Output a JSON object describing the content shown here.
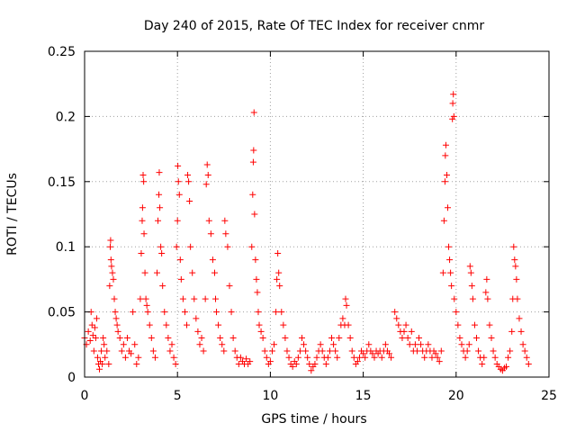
{
  "chart_data": {
    "type": "scatter",
    "title": "Day 240 of 2015, Rate Of TEC Index for receiver cnmr",
    "xlabel": "GPS time / hours",
    "ylabel": "ROTI / TECUs",
    "xlim": [
      0,
      25
    ],
    "ylim": [
      0,
      0.25
    ],
    "xticks": [
      0,
      5,
      10,
      15,
      20,
      25
    ],
    "xtick_labels": [
      "0",
      "5",
      "10",
      "15",
      "20",
      "25"
    ],
    "yticks": [
      0,
      0.05,
      0.1,
      0.15,
      0.2,
      0.25
    ],
    "ytick_labels": [
      "0",
      "0.05",
      "0.1",
      "0.15",
      "0.2",
      "0.25"
    ],
    "grid": true,
    "marker": "+",
    "color": "#ff0000",
    "series": [
      {
        "name": "ROTI",
        "points": [
          [
            0.0,
            0.03
          ],
          [
            0.1,
            0.025
          ],
          [
            0.2,
            0.035
          ],
          [
            0.3,
            0.028
          ],
          [
            0.35,
            0.05
          ],
          [
            0.4,
            0.04
          ],
          [
            0.45,
            0.032
          ],
          [
            0.5,
            0.02
          ],
          [
            0.55,
            0.038
          ],
          [
            0.6,
            0.03
          ],
          [
            0.65,
            0.045
          ],
          [
            0.7,
            0.015
          ],
          [
            0.75,
            0.01
          ],
          [
            0.8,
            0.006
          ],
          [
            0.85,
            0.012
          ],
          [
            0.9,
            0.02
          ],
          [
            0.95,
            0.01
          ],
          [
            1.0,
            0.03
          ],
          [
            1.05,
            0.025
          ],
          [
            1.1,
            0.015
          ],
          [
            1.2,
            0.02
          ],
          [
            1.3,
            0.01
          ],
          [
            1.35,
            0.07
          ],
          [
            1.38,
            0.1
          ],
          [
            1.4,
            0.105
          ],
          [
            1.42,
            0.09
          ],
          [
            1.45,
            0.085
          ],
          [
            1.5,
            0.08
          ],
          [
            1.55,
            0.075
          ],
          [
            1.6,
            0.06
          ],
          [
            1.65,
            0.05
          ],
          [
            1.7,
            0.045
          ],
          [
            1.75,
            0.04
          ],
          [
            1.8,
            0.035
          ],
          [
            1.9,
            0.03
          ],
          [
            2.0,
            0.02
          ],
          [
            2.1,
            0.025
          ],
          [
            2.2,
            0.015
          ],
          [
            2.3,
            0.03
          ],
          [
            2.4,
            0.02
          ],
          [
            2.5,
            0.018
          ],
          [
            2.6,
            0.05
          ],
          [
            2.7,
            0.025
          ],
          [
            2.8,
            0.01
          ],
          [
            2.9,
            0.015
          ],
          [
            3.0,
            0.06
          ],
          [
            3.05,
            0.095
          ],
          [
            3.1,
            0.12
          ],
          [
            3.12,
            0.13
          ],
          [
            3.15,
            0.155
          ],
          [
            3.18,
            0.15
          ],
          [
            3.2,
            0.11
          ],
          [
            3.25,
            0.08
          ],
          [
            3.3,
            0.06
          ],
          [
            3.35,
            0.055
          ],
          [
            3.4,
            0.05
          ],
          [
            3.5,
            0.04
          ],
          [
            3.6,
            0.03
          ],
          [
            3.7,
            0.02
          ],
          [
            3.8,
            0.015
          ],
          [
            3.9,
            0.08
          ],
          [
            3.95,
            0.12
          ],
          [
            4.0,
            0.14
          ],
          [
            4.02,
            0.157
          ],
          [
            4.05,
            0.13
          ],
          [
            4.1,
            0.1
          ],
          [
            4.15,
            0.095
          ],
          [
            4.2,
            0.07
          ],
          [
            4.3,
            0.05
          ],
          [
            4.4,
            0.04
          ],
          [
            4.5,
            0.03
          ],
          [
            4.6,
            0.02
          ],
          [
            4.7,
            0.025
          ],
          [
            4.8,
            0.015
          ],
          [
            4.9,
            0.01
          ],
          [
            4.95,
            0.1
          ],
          [
            5.0,
            0.12
          ],
          [
            5.02,
            0.162
          ],
          [
            5.05,
            0.15
          ],
          [
            5.1,
            0.14
          ],
          [
            5.15,
            0.09
          ],
          [
            5.2,
            0.075
          ],
          [
            5.3,
            0.06
          ],
          [
            5.4,
            0.05
          ],
          [
            5.5,
            0.04
          ],
          [
            5.55,
            0.155
          ],
          [
            5.6,
            0.15
          ],
          [
            5.65,
            0.135
          ],
          [
            5.7,
            0.1
          ],
          [
            5.8,
            0.08
          ],
          [
            5.9,
            0.06
          ],
          [
            6.0,
            0.045
          ],
          [
            6.1,
            0.035
          ],
          [
            6.2,
            0.025
          ],
          [
            6.3,
            0.03
          ],
          [
            6.4,
            0.02
          ],
          [
            6.5,
            0.06
          ],
          [
            6.55,
            0.148
          ],
          [
            6.6,
            0.163
          ],
          [
            6.65,
            0.155
          ],
          [
            6.7,
            0.12
          ],
          [
            6.8,
            0.11
          ],
          [
            6.9,
            0.09
          ],
          [
            7.0,
            0.08
          ],
          [
            7.05,
            0.06
          ],
          [
            7.1,
            0.05
          ],
          [
            7.2,
            0.04
          ],
          [
            7.3,
            0.03
          ],
          [
            7.4,
            0.025
          ],
          [
            7.5,
            0.02
          ],
          [
            7.55,
            0.12
          ],
          [
            7.6,
            0.11
          ],
          [
            7.7,
            0.1
          ],
          [
            7.8,
            0.07
          ],
          [
            7.9,
            0.05
          ],
          [
            8.0,
            0.03
          ],
          [
            8.1,
            0.02
          ],
          [
            8.2,
            0.015
          ],
          [
            8.3,
            0.01
          ],
          [
            8.4,
            0.015
          ],
          [
            8.5,
            0.012
          ],
          [
            8.6,
            0.01
          ],
          [
            8.7,
            0.014
          ],
          [
            8.8,
            0.01
          ],
          [
            8.9,
            0.012
          ],
          [
            9.0,
            0.1
          ],
          [
            9.05,
            0.14
          ],
          [
            9.08,
            0.165
          ],
          [
            9.1,
            0.174
          ],
          [
            9.12,
            0.203
          ],
          [
            9.15,
            0.125
          ],
          [
            9.2,
            0.09
          ],
          [
            9.25,
            0.075
          ],
          [
            9.3,
            0.065
          ],
          [
            9.35,
            0.05
          ],
          [
            9.4,
            0.04
          ],
          [
            9.5,
            0.035
          ],
          [
            9.6,
            0.03
          ],
          [
            9.7,
            0.02
          ],
          [
            9.8,
            0.015
          ],
          [
            9.9,
            0.01
          ],
          [
            10.0,
            0.012
          ],
          [
            10.1,
            0.02
          ],
          [
            10.2,
            0.025
          ],
          [
            10.3,
            0.05
          ],
          [
            10.35,
            0.075
          ],
          [
            10.4,
            0.095
          ],
          [
            10.45,
            0.08
          ],
          [
            10.5,
            0.07
          ],
          [
            10.6,
            0.05
          ],
          [
            10.7,
            0.04
          ],
          [
            10.8,
            0.03
          ],
          [
            10.9,
            0.02
          ],
          [
            11.0,
            0.015
          ],
          [
            11.1,
            0.01
          ],
          [
            11.2,
            0.008
          ],
          [
            11.3,
            0.012
          ],
          [
            11.4,
            0.01
          ],
          [
            11.5,
            0.015
          ],
          [
            11.6,
            0.02
          ],
          [
            11.7,
            0.03
          ],
          [
            11.8,
            0.025
          ],
          [
            11.9,
            0.02
          ],
          [
            12.0,
            0.015
          ],
          [
            12.1,
            0.01
          ],
          [
            12.2,
            0.005
          ],
          [
            12.3,
            0.008
          ],
          [
            12.4,
            0.01
          ],
          [
            12.5,
            0.015
          ],
          [
            12.6,
            0.02
          ],
          [
            12.7,
            0.025
          ],
          [
            12.8,
            0.02
          ],
          [
            12.9,
            0.015
          ],
          [
            13.0,
            0.01
          ],
          [
            13.1,
            0.015
          ],
          [
            13.2,
            0.02
          ],
          [
            13.3,
            0.03
          ],
          [
            13.4,
            0.025
          ],
          [
            13.5,
            0.02
          ],
          [
            13.6,
            0.015
          ],
          [
            13.7,
            0.03
          ],
          [
            13.8,
            0.04
          ],
          [
            13.9,
            0.045
          ],
          [
            14.0,
            0.04
          ],
          [
            14.05,
            0.06
          ],
          [
            14.1,
            0.055
          ],
          [
            14.2,
            0.04
          ],
          [
            14.3,
            0.03
          ],
          [
            14.4,
            0.02
          ],
          [
            14.5,
            0.015
          ],
          [
            14.6,
            0.01
          ],
          [
            14.7,
            0.012
          ],
          [
            14.8,
            0.015
          ],
          [
            14.9,
            0.02
          ],
          [
            15.0,
            0.018
          ],
          [
            15.1,
            0.015
          ],
          [
            15.2,
            0.02
          ],
          [
            15.3,
            0.025
          ],
          [
            15.4,
            0.02
          ],
          [
            15.5,
            0.018
          ],
          [
            15.6,
            0.015
          ],
          [
            15.7,
            0.02
          ],
          [
            15.8,
            0.018
          ],
          [
            15.9,
            0.02
          ],
          [
            16.0,
            0.015
          ],
          [
            16.1,
            0.02
          ],
          [
            16.2,
            0.025
          ],
          [
            16.3,
            0.02
          ],
          [
            16.4,
            0.018
          ],
          [
            16.5,
            0.015
          ],
          [
            16.7,
            0.05
          ],
          [
            16.8,
            0.045
          ],
          [
            16.9,
            0.04
          ],
          [
            17.0,
            0.035
          ],
          [
            17.1,
            0.03
          ],
          [
            17.2,
            0.035
          ],
          [
            17.3,
            0.04
          ],
          [
            17.4,
            0.03
          ],
          [
            17.5,
            0.025
          ],
          [
            17.6,
            0.035
          ],
          [
            17.7,
            0.02
          ],
          [
            17.8,
            0.025
          ],
          [
            17.9,
            0.02
          ],
          [
            18.0,
            0.03
          ],
          [
            18.1,
            0.025
          ],
          [
            18.2,
            0.02
          ],
          [
            18.3,
            0.015
          ],
          [
            18.4,
            0.02
          ],
          [
            18.5,
            0.025
          ],
          [
            18.6,
            0.02
          ],
          [
            18.7,
            0.015
          ],
          [
            18.8,
            0.02
          ],
          [
            18.9,
            0.018
          ],
          [
            19.0,
            0.015
          ],
          [
            19.1,
            0.012
          ],
          [
            19.2,
            0.02
          ],
          [
            19.3,
            0.08
          ],
          [
            19.35,
            0.12
          ],
          [
            19.4,
            0.15
          ],
          [
            19.42,
            0.17
          ],
          [
            19.45,
            0.178
          ],
          [
            19.5,
            0.155
          ],
          [
            19.55,
            0.13
          ],
          [
            19.6,
            0.1
          ],
          [
            19.65,
            0.09
          ],
          [
            19.7,
            0.08
          ],
          [
            19.75,
            0.07
          ],
          [
            19.8,
            0.198
          ],
          [
            19.82,
            0.21
          ],
          [
            19.85,
            0.217
          ],
          [
            19.88,
            0.2
          ],
          [
            19.9,
            0.06
          ],
          [
            20.0,
            0.05
          ],
          [
            20.1,
            0.04
          ],
          [
            20.2,
            0.03
          ],
          [
            20.3,
            0.025
          ],
          [
            20.4,
            0.02
          ],
          [
            20.5,
            0.015
          ],
          [
            20.6,
            0.02
          ],
          [
            20.7,
            0.025
          ],
          [
            20.75,
            0.085
          ],
          [
            20.8,
            0.08
          ],
          [
            20.85,
            0.07
          ],
          [
            20.9,
            0.06
          ],
          [
            21.0,
            0.04
          ],
          [
            21.1,
            0.03
          ],
          [
            21.2,
            0.02
          ],
          [
            21.3,
            0.015
          ],
          [
            21.4,
            0.01
          ],
          [
            21.5,
            0.015
          ],
          [
            21.6,
            0.065
          ],
          [
            21.65,
            0.075
          ],
          [
            21.7,
            0.06
          ],
          [
            21.8,
            0.04
          ],
          [
            21.9,
            0.03
          ],
          [
            22.0,
            0.02
          ],
          [
            22.1,
            0.015
          ],
          [
            22.2,
            0.01
          ],
          [
            22.3,
            0.008
          ],
          [
            22.4,
            0.006
          ],
          [
            22.5,
            0.005
          ],
          [
            22.6,
            0.007
          ],
          [
            22.7,
            0.008
          ],
          [
            22.8,
            0.015
          ],
          [
            22.9,
            0.02
          ],
          [
            23.0,
            0.035
          ],
          [
            23.05,
            0.06
          ],
          [
            23.1,
            0.1
          ],
          [
            23.15,
            0.09
          ],
          [
            23.2,
            0.085
          ],
          [
            23.25,
            0.075
          ],
          [
            23.3,
            0.06
          ],
          [
            23.4,
            0.045
          ],
          [
            23.5,
            0.035
          ],
          [
            23.6,
            0.025
          ],
          [
            23.7,
            0.02
          ],
          [
            23.8,
            0.015
          ],
          [
            23.9,
            0.01
          ]
        ]
      }
    ]
  }
}
